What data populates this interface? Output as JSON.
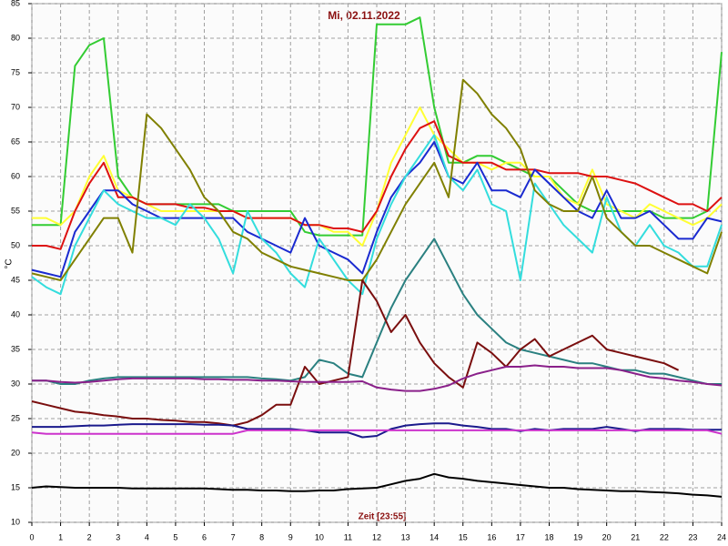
{
  "chart_data": {
    "type": "line",
    "title": "Mi, 02.11.2022",
    "x_label": "Zeit [23:55]",
    "y_label": "°C",
    "x": [
      0,
      0.5,
      1,
      1.5,
      2,
      2.5,
      3,
      3.5,
      4,
      4.5,
      5,
      5.5,
      6,
      6.5,
      7,
      7.5,
      8,
      8.5,
      9,
      9.5,
      10,
      10.5,
      11,
      11.5,
      12,
      12.5,
      13,
      13.5,
      14,
      14.5,
      15,
      15.5,
      16,
      16.5,
      17,
      17.5,
      18,
      18.5,
      19,
      19.5,
      20,
      20.5,
      21,
      21.5,
      22,
      22.5,
      23,
      23.5,
      24
    ],
    "xlim": [
      0,
      24
    ],
    "ylim": [
      10,
      85
    ],
    "xticks": [
      0,
      1,
      2,
      3,
      4,
      5,
      6,
      7,
      8,
      9,
      10,
      11,
      12,
      13,
      14,
      15,
      16,
      17,
      18,
      19,
      20,
      21,
      22,
      23,
      24
    ],
    "yticks": [
      10,
      15,
      20,
      25,
      30,
      35,
      40,
      45,
      50,
      55,
      60,
      65,
      70,
      75,
      80,
      85
    ],
    "grid": true,
    "series": [
      {
        "color": "#33cc33",
        "values": [
          53,
          53,
          53,
          76,
          79,
          80,
          60,
          57,
          56,
          56,
          56,
          56,
          56,
          56,
          55,
          55,
          55,
          55,
          55,
          52,
          51.5,
          51.5,
          51.5,
          51.5,
          82,
          82,
          82,
          83,
          70,
          62,
          62,
          63,
          63,
          62,
          61,
          60,
          60,
          58,
          56,
          55,
          55,
          55,
          55,
          55,
          54,
          54,
          54,
          55,
          78
        ]
      },
      {
        "color": "#ffff33",
        "values": [
          54,
          54,
          53,
          55,
          60,
          63,
          58,
          57,
          56,
          55,
          55,
          55,
          55,
          55,
          55,
          54,
          54,
          54,
          54,
          53,
          53,
          52,
          52,
          50,
          55,
          62,
          66,
          70,
          66,
          64,
          62,
          62,
          61,
          62,
          62,
          60,
          60,
          57,
          56,
          61,
          56,
          55,
          54,
          56,
          55,
          54,
          53,
          54,
          56
        ]
      },
      {
        "color": "#dd1111",
        "values": [
          50,
          50,
          49.5,
          55,
          59,
          62,
          57,
          57,
          56,
          56,
          56,
          55.5,
          55.5,
          55,
          55,
          54,
          54,
          54,
          54,
          53,
          53,
          52.5,
          52.5,
          52,
          55,
          60,
          64,
          67,
          68,
          63,
          62,
          62,
          62,
          61,
          61,
          61,
          60.5,
          60.5,
          60.5,
          60,
          60,
          59.5,
          59,
          58,
          57,
          56,
          56,
          55,
          57
        ]
      },
      {
        "color": "#1a2ad0",
        "values": [
          46.5,
          46,
          45.5,
          52,
          55,
          58,
          58,
          56,
          55,
          54,
          54,
          54,
          54,
          54,
          54,
          52,
          51,
          50,
          49,
          54,
          50,
          49,
          48,
          46,
          52,
          57,
          60,
          62,
          65,
          60,
          59,
          62,
          58,
          58,
          57,
          61,
          59,
          57,
          55,
          54,
          58,
          54,
          54,
          55,
          53,
          51,
          51,
          54,
          53.5
        ]
      },
      {
        "color": "#33dddd",
        "values": [
          45.5,
          44,
          43,
          50,
          54,
          58,
          56,
          55,
          54,
          54,
          53,
          56,
          54,
          51,
          46,
          55,
          51,
          49,
          46,
          44,
          51,
          48,
          45,
          43,
          51,
          56,
          60,
          63,
          66,
          60,
          58,
          61,
          56,
          55,
          45,
          59,
          56,
          53,
          51,
          49,
          57,
          52,
          50,
          53,
          50,
          49,
          47,
          47,
          53
        ]
      },
      {
        "color": "#808000",
        "values": [
          46,
          45.5,
          45,
          48,
          51,
          54,
          54,
          49,
          69,
          67,
          64,
          61,
          57,
          55,
          52,
          51,
          49,
          48,
          47,
          46.5,
          46,
          45.5,
          45,
          45,
          48,
          52,
          56,
          59,
          62,
          57,
          74,
          72,
          69,
          67,
          64,
          58,
          56,
          55,
          55,
          60,
          54,
          52,
          50,
          50,
          49,
          48,
          47,
          46,
          52
        ]
      },
      {
        "color": "#2a8080",
        "values": [
          30.5,
          30.5,
          30,
          30,
          30.5,
          30.8,
          31,
          31,
          31,
          31,
          31,
          31,
          31,
          31,
          31,
          31,
          30.8,
          30.7,
          30.5,
          31,
          33.5,
          33,
          31.5,
          31,
          36,
          41,
          45,
          48,
          51,
          47,
          43,
          40,
          38,
          36,
          35,
          34.5,
          34,
          33.5,
          33,
          33,
          32.5,
          32,
          32,
          31.5,
          31.5,
          31,
          30.5,
          30,
          30
        ]
      },
      {
        "color": "#7a0e0e",
        "values": [
          27.5,
          27,
          26.5,
          26,
          25.8,
          25.5,
          25.3,
          25,
          25,
          24.8,
          24.7,
          24.5,
          24.5,
          24.3,
          24,
          24.5,
          25.5,
          27,
          27,
          32.5,
          30,
          30.5,
          31,
          45,
          42,
          37.5,
          40,
          36,
          33,
          31,
          29.5,
          36,
          34.5,
          32.5,
          35,
          36.5,
          34,
          35,
          36,
          37,
          35,
          34.5,
          34,
          33.5,
          33,
          32,
          null,
          null,
          null
        ]
      },
      {
        "color": "#8a208a",
        "values": [
          30.5,
          30.5,
          30.3,
          30.2,
          30.3,
          30.5,
          30.7,
          30.8,
          30.8,
          30.8,
          30.8,
          30.8,
          30.7,
          30.7,
          30.6,
          30.6,
          30.5,
          30.5,
          30.4,
          30.3,
          30.3,
          30.3,
          30.3,
          30.4,
          29.5,
          29.2,
          29,
          29,
          29.3,
          29.8,
          30.8,
          31.5,
          32,
          32.5,
          32.5,
          32.7,
          32.5,
          32.5,
          32.3,
          32.3,
          32.3,
          32,
          31.5,
          31,
          30.8,
          30.5,
          30.3,
          30,
          29.8
        ]
      },
      {
        "color": "#1a1a8c",
        "values": [
          23.8,
          23.8,
          23.8,
          23.9,
          24,
          24,
          24.1,
          24.2,
          24.2,
          24.2,
          24.2,
          24.2,
          24.1,
          24.1,
          24,
          23.5,
          23.5,
          23.5,
          23.5,
          23.3,
          23,
          23,
          23,
          22.3,
          22.5,
          23.5,
          24,
          24.2,
          24.3,
          24.3,
          24,
          23.8,
          23.5,
          23.5,
          23.2,
          23.5,
          23.3,
          23.5,
          23.5,
          23.5,
          23.8,
          23.5,
          23.2,
          23.5,
          23.5,
          23.5,
          23.4,
          23.4,
          23.4
        ]
      },
      {
        "color": "#cc33cc",
        "values": [
          23,
          22.8,
          22.8,
          22.8,
          22.8,
          22.8,
          22.8,
          22.8,
          22.8,
          22.8,
          22.8,
          22.8,
          22.8,
          22.8,
          22.8,
          23.3,
          23.3,
          23.3,
          23.3,
          23.3,
          23.3,
          23.3,
          23.3,
          23.3,
          23.3,
          23.3,
          23.3,
          23.3,
          23.3,
          23.3,
          23.3,
          23.3,
          23.3,
          23.3,
          23.3,
          23.3,
          23.3,
          23.3,
          23.3,
          23.3,
          23.3,
          23.3,
          23.3,
          23.3,
          23.3,
          23.3,
          23.3,
          23.3,
          22.8
        ]
      },
      {
        "color": "#000000",
        "values": [
          15,
          15.2,
          15.1,
          15,
          15,
          15,
          15,
          14.9,
          14.9,
          14.9,
          14.9,
          14.9,
          14.9,
          14.8,
          14.7,
          14.7,
          14.6,
          14.6,
          14.5,
          14.5,
          14.6,
          14.6,
          14.8,
          14.9,
          15,
          15.5,
          16,
          16.3,
          17,
          16.5,
          16.3,
          16,
          15.8,
          15.6,
          15.4,
          15.2,
          15,
          15,
          14.8,
          14.7,
          14.6,
          14.5,
          14.5,
          14.4,
          14.3,
          14.2,
          14,
          13.9,
          13.7
        ]
      }
    ]
  }
}
